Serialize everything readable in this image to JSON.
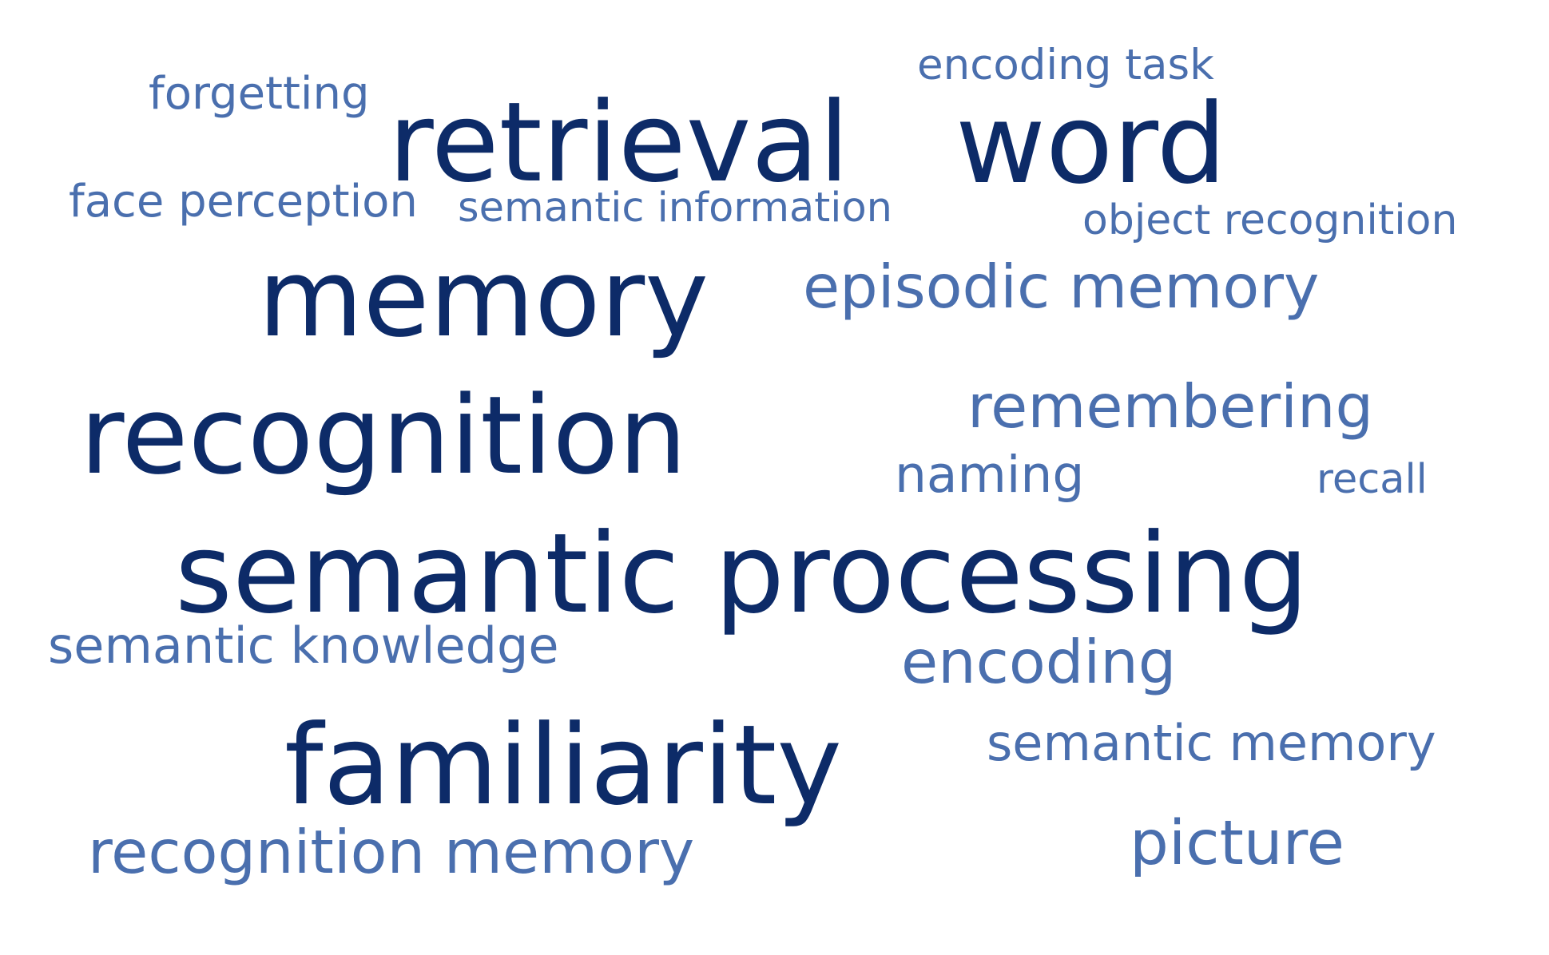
{
  "words": [
    {
      "text": "forgetting",
      "weight": "light",
      "color": "#4a6fae"
    },
    {
      "text": "retrieval",
      "weight": "dark",
      "color": "#0d2b68"
    },
    {
      "text": "encoding task",
      "weight": "light",
      "color": "#4a6fae"
    },
    {
      "text": "word",
      "weight": "dark",
      "color": "#0d2b68"
    },
    {
      "text": "face perception",
      "weight": "light",
      "color": "#4a6fae"
    },
    {
      "text": "semantic information",
      "weight": "light",
      "color": "#4a6fae"
    },
    {
      "text": "object recognition",
      "weight": "light",
      "color": "#4a6fae"
    },
    {
      "text": "memory",
      "weight": "dark",
      "color": "#0d2b68"
    },
    {
      "text": "episodic memory",
      "weight": "light",
      "color": "#4a6fae"
    },
    {
      "text": "recognition",
      "weight": "dark",
      "color": "#0d2b68"
    },
    {
      "text": "remembering",
      "weight": "light",
      "color": "#4a6fae"
    },
    {
      "text": "naming",
      "weight": "light",
      "color": "#4a6fae"
    },
    {
      "text": "recall",
      "weight": "light",
      "color": "#4a6fae"
    },
    {
      "text": "semantic processing",
      "weight": "dark",
      "color": "#0d2b68"
    },
    {
      "text": "semantic knowledge",
      "weight": "light",
      "color": "#4a6fae"
    },
    {
      "text": "encoding",
      "weight": "light",
      "color": "#4a6fae"
    },
    {
      "text": "familiarity",
      "weight": "dark",
      "color": "#0d2b68"
    },
    {
      "text": "semantic memory",
      "weight": "light",
      "color": "#4a6fae"
    },
    {
      "text": "recognition memory",
      "weight": "light",
      "color": "#4a6fae"
    },
    {
      "text": "picture",
      "weight": "light",
      "color": "#4a6fae"
    }
  ]
}
